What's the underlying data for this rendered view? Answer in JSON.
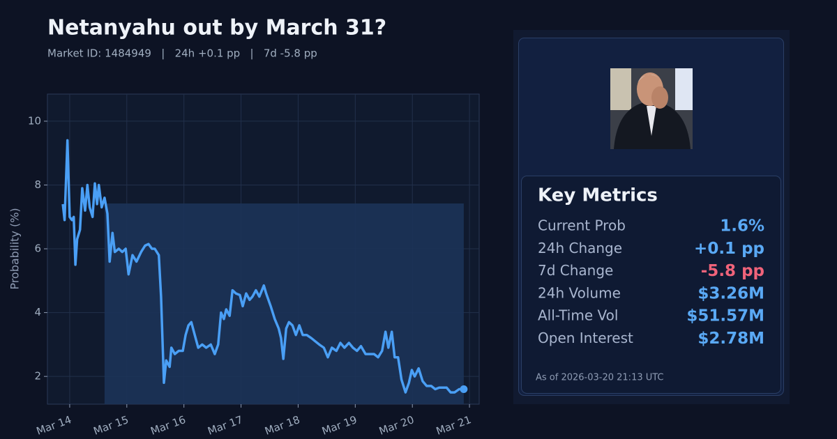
{
  "chart_data": {
    "type": "line",
    "title": "Netanyahu out by March 31?",
    "subtitle": "Market ID: 1484949   |   24h +0.1 pp   |   7d -5.8 pp",
    "y_label": "Probability (%)",
    "color": "#4a9ff5",
    "x": [
      13.88,
      13.91,
      13.96,
      14.0,
      14.04,
      14.07,
      14.1,
      14.13,
      14.18,
      14.22,
      14.27,
      14.31,
      14.35,
      14.4,
      14.44,
      14.48,
      14.51,
      14.56,
      14.61,
      14.66,
      14.7,
      14.75,
      14.79,
      14.86,
      14.92,
      14.98,
      15.03,
      15.1,
      15.17,
      15.25,
      15.32,
      15.38,
      15.44,
      15.49,
      15.56,
      15.6,
      15.65,
      15.69,
      15.75,
      15.78,
      15.84,
      15.91,
      15.98,
      16.03,
      16.08,
      16.13,
      16.19,
      16.25,
      16.32,
      16.39,
      16.47,
      16.54,
      16.6,
      16.65,
      16.7,
      16.74,
      16.8,
      16.85,
      16.91,
      16.98,
      17.03,
      17.09,
      17.15,
      17.2,
      17.26,
      17.32,
      17.4,
      17.44,
      17.52,
      17.59,
      17.66,
      17.7,
      17.74,
      17.79,
      17.84,
      17.9,
      17.96,
      18.02,
      18.08,
      18.15,
      18.23,
      18.3,
      18.37,
      18.45,
      18.52,
      18.59,
      18.67,
      18.74,
      18.81,
      18.89,
      18.96,
      19.03,
      19.1,
      19.18,
      19.25,
      19.33,
      19.4,
      19.47,
      19.53,
      19.58,
      19.64,
      19.69,
      19.75,
      19.81,
      19.88,
      19.94,
      19.99,
      20.04,
      20.11,
      20.18,
      20.25,
      20.33,
      20.4,
      20.47,
      20.53,
      20.6,
      20.67,
      20.74,
      20.82,
      20.9
    ],
    "values": [
      7.4,
      6.9,
      9.4,
      7.0,
      6.9,
      7.0,
      5.5,
      6.3,
      6.6,
      7.9,
      7.2,
      8.0,
      7.3,
      7.0,
      8.05,
      7.4,
      8.0,
      7.3,
      7.6,
      7.1,
      5.6,
      6.5,
      5.9,
      6.0,
      5.9,
      6.0,
      5.2,
      5.8,
      5.6,
      5.9,
      6.1,
      6.15,
      6.0,
      6.0,
      5.8,
      4.5,
      1.8,
      2.5,
      2.3,
      2.9,
      2.7,
      2.8,
      2.8,
      3.3,
      3.6,
      3.7,
      3.3,
      2.9,
      3.0,
      2.9,
      3.0,
      2.7,
      3.0,
      4.0,
      3.8,
      4.1,
      3.9,
      4.7,
      4.6,
      4.55,
      4.2,
      4.6,
      4.4,
      4.5,
      4.7,
      4.5,
      4.85,
      4.6,
      4.2,
      3.8,
      3.5,
      3.2,
      2.55,
      3.5,
      3.7,
      3.6,
      3.3,
      3.6,
      3.3,
      3.3,
      3.2,
      3.1,
      3.0,
      2.9,
      2.6,
      2.9,
      2.8,
      3.05,
      2.9,
      3.05,
      2.9,
      2.8,
      2.95,
      2.7,
      2.7,
      2.7,
      2.6,
      2.8,
      3.4,
      2.9,
      3.4,
      2.6,
      2.6,
      1.9,
      1.5,
      1.8,
      2.2,
      2.0,
      2.25,
      1.85,
      1.7,
      1.7,
      1.6,
      1.65,
      1.65,
      1.65,
      1.5,
      1.5,
      1.6,
      1.6
    ],
    "band": {
      "x": [
        14.61,
        20.9
      ],
      "top": 7.42,
      "color": "#1c3358"
    },
    "xlim": [
      13.61,
      21.17
    ],
    "ylim": [
      1.13,
      10.85
    ],
    "xticks": [
      {
        "value": 14,
        "label": "Mar 14"
      },
      {
        "value": 15,
        "label": "Mar 15"
      },
      {
        "value": 16,
        "label": "Mar 16"
      },
      {
        "value": 17,
        "label": "Mar 17"
      },
      {
        "value": 18,
        "label": "Mar 18"
      },
      {
        "value": 19,
        "label": "Mar 19"
      },
      {
        "value": 20,
        "label": "Mar 20"
      },
      {
        "value": 21,
        "label": "Mar 21"
      }
    ],
    "yticks": [
      2,
      4,
      6,
      8,
      10
    ],
    "grid": true
  },
  "metrics": {
    "title": "Key Metrics",
    "rows": [
      {
        "label": "Current Prob",
        "value": "1.6%",
        "color": "#5aa9f5"
      },
      {
        "label": "24h Change",
        "value": "+0.1 pp",
        "color": "#5aa9f5"
      },
      {
        "label": "7d Change",
        "value": "-5.8 pp",
        "color": "#f0637a"
      },
      {
        "label": "24h Volume",
        "value": "$3.26M",
        "color": "#5aa9f5"
      },
      {
        "label": "All-Time Vol",
        "value": "$51.57M",
        "color": "#5aa9f5"
      },
      {
        "label": "Open Interest",
        "value": "$2.78M",
        "color": "#5aa9f5"
      }
    ],
    "as_of": "As of 2026-03-20 21:13 UTC"
  }
}
